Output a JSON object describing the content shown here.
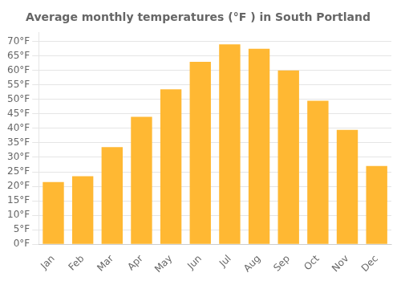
{
  "chart_data": {
    "type": "bar",
    "title": "Average monthly temperatures (°F ) in South Portland",
    "categories": [
      "Jan",
      "Feb",
      "Mar",
      "Apr",
      "May",
      "Jun",
      "Jul",
      "Aug",
      "Sep",
      "Oct",
      "Nov",
      "Dec"
    ],
    "values": [
      21.5,
      23.5,
      33.5,
      44,
      53.5,
      63,
      69,
      67.5,
      60,
      49.5,
      39.5,
      27
    ],
    "color": "#FFB833",
    "ylim": [
      0,
      73
    ],
    "yticks": [
      {
        "value": 0,
        "label": "0°F"
      },
      {
        "value": 5,
        "label": "5°F"
      },
      {
        "value": 10,
        "label": "10°F"
      },
      {
        "value": 15,
        "label": "15°F"
      },
      {
        "value": 20,
        "label": "20°F"
      },
      {
        "value": 25,
        "label": "25°F"
      },
      {
        "value": 30,
        "label": "30°F"
      },
      {
        "value": 35,
        "label": "35°F"
      },
      {
        "value": 40,
        "label": "40°F"
      },
      {
        "value": 45,
        "label": "45°F"
      },
      {
        "value": 50,
        "label": "50°F"
      },
      {
        "value": 55,
        "label": "55°F"
      },
      {
        "value": 60,
        "label": "60°F"
      },
      {
        "value": 65,
        "label": "65°F"
      },
      {
        "value": 70,
        "label": "70°F"
      }
    ],
    "grid": true
  }
}
